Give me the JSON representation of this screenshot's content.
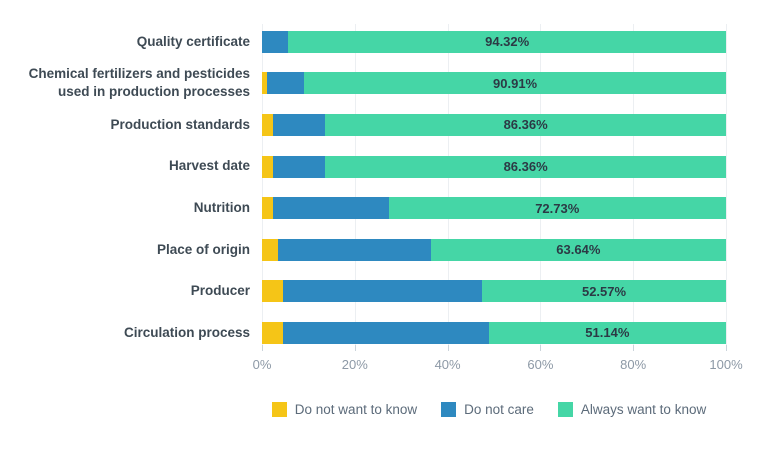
{
  "chart_data": {
    "type": "bar",
    "orientation": "horizontal",
    "stacked": true,
    "title": "",
    "xlabel": "",
    "ylabel": "",
    "xlim": [
      0,
      100
    ],
    "grid": true,
    "legend_position": "bottom",
    "categories": [
      "Quality certificate",
      "Chemical fertilizers and pesticides used in production processes",
      "Production standards",
      "Harvest date",
      "Nutrition",
      "Place of origin",
      "Producer",
      "Circulation process"
    ],
    "series": [
      {
        "name": "Do not want to know",
        "color": "#F5C517",
        "values": [
          0,
          1.14,
          2.27,
          2.27,
          2.27,
          3.41,
          4.55,
          4.55
        ]
      },
      {
        "name": "Do not care",
        "color": "#2E89C0",
        "values": [
          5.68,
          7.95,
          11.37,
          11.37,
          25.0,
          32.95,
          42.88,
          44.31
        ]
      },
      {
        "name": "Always want to know",
        "color": "#45D6A6",
        "values": [
          94.32,
          90.91,
          86.36,
          86.36,
          72.73,
          63.64,
          52.57,
          51.14
        ]
      }
    ],
    "bar_labels": [
      "94.32%",
      "90.91%",
      "86.36%",
      "86.36%",
      "72.73%",
      "63.64%",
      "52.57%",
      "51.14%"
    ],
    "x_ticks": [
      "0%",
      "20%",
      "40%",
      "60%",
      "80%",
      "100%"
    ]
  },
  "legend": {
    "items": [
      {
        "label": "Do not want to know",
        "color": "#F5C517"
      },
      {
        "label": "Do not care",
        "color": "#2E89C0"
      },
      {
        "label": "Always want to know",
        "color": "#45D6A6"
      }
    ]
  },
  "colors": {
    "grid": "#ECEFF2",
    "tick_text": "#8D99A6",
    "category_text": "#3E4A54",
    "value_text": "#2C3A45",
    "legend_text": "#5C6B7A"
  }
}
